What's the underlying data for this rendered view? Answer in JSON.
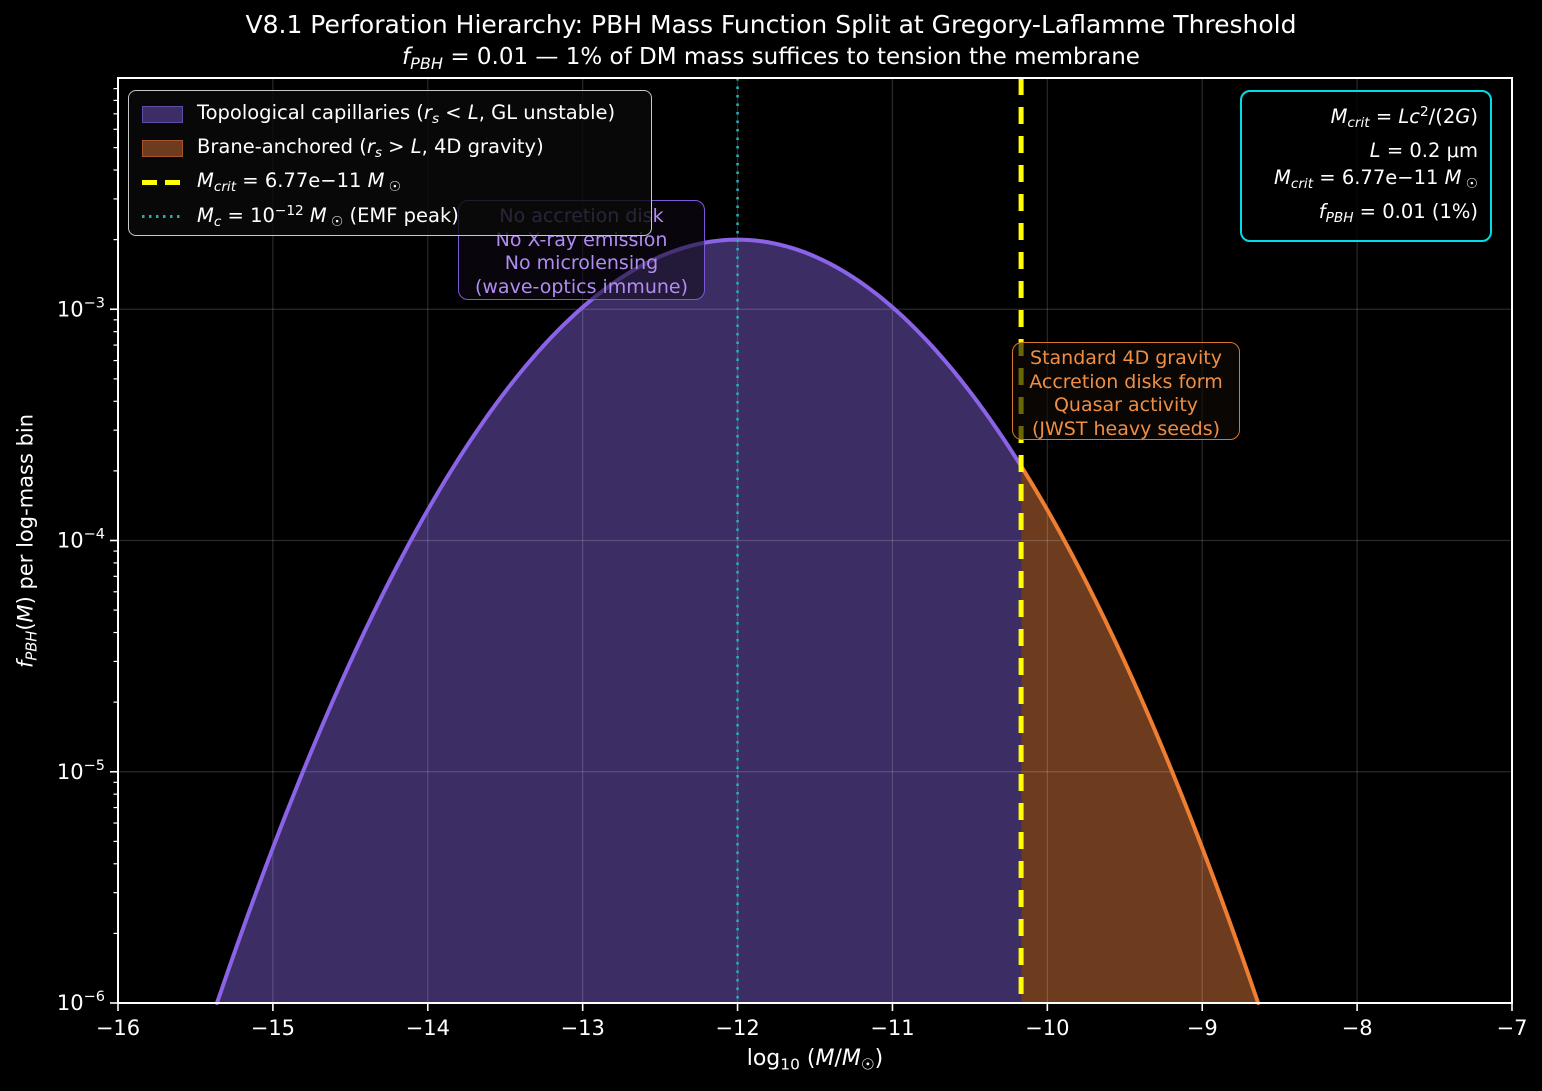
{
  "title": "V8.1 Perforation Hierarchy: PBH Mass Function Split at Gregory-Laflamme Threshold",
  "subtitle_parts": [
    {
      "t": "f",
      "i": 1
    },
    {
      "t": "PBH",
      "sub": 1,
      "i": 1
    },
    {
      "t": " = 0.01 — 1% of DM mass suffices to tension the membrane"
    }
  ],
  "axes": {
    "x_label_parts": [
      {
        "t": "log"
      },
      {
        "t": "10",
        "sub": 1
      },
      {
        "t": " ("
      },
      {
        "t": "M",
        "i": 1
      },
      {
        "t": "/"
      },
      {
        "t": "M",
        "i": 1
      },
      {
        "t": "☉",
        "sub": 1
      },
      {
        "t": ")"
      }
    ],
    "y_label_parts": [
      {
        "t": "f",
        "i": 1
      },
      {
        "t": "PBH",
        "sub": 1,
        "i": 1
      },
      {
        "t": "("
      },
      {
        "t": "M",
        "i": 1
      },
      {
        "t": ") per log-mass bin"
      }
    ]
  },
  "legend": {
    "items": [
      {
        "swatch": "patch-purple",
        "label_parts": [
          {
            "t": "Topological capillaries ("
          },
          {
            "t": "r",
            "i": 1
          },
          {
            "t": "s",
            "sub": 1,
            "i": 1
          },
          {
            "t": " < "
          },
          {
            "t": "L",
            "i": 1
          },
          {
            "t": ", GL unstable)"
          }
        ]
      },
      {
        "swatch": "patch-brown",
        "label_parts": [
          {
            "t": "Brane-anchored ("
          },
          {
            "t": "r",
            "i": 1
          },
          {
            "t": "s",
            "sub": 1,
            "i": 1
          },
          {
            "t": " > "
          },
          {
            "t": "L",
            "i": 1
          },
          {
            "t": ", 4D gravity)"
          }
        ]
      },
      {
        "swatch": "dashed-yellow-line",
        "label_parts": [
          {
            "t": "M",
            "i": 1
          },
          {
            "t": "crit",
            "sub": 1,
            "i": 1
          },
          {
            "t": " = 6.77e−11 "
          },
          {
            "t": "M",
            "i": 1
          },
          {
            "t": " ☉",
            "sub": 1
          }
        ]
      },
      {
        "swatch": "dotted-teal-line",
        "label_parts": [
          {
            "t": "M",
            "i": 1
          },
          {
            "t": "c",
            "sub": 1,
            "i": 1
          },
          {
            "t": " = 10"
          },
          {
            "t": "−12",
            "sup": 1
          },
          {
            "t": " "
          },
          {
            "t": "M",
            "i": 1
          },
          {
            "t": " ☉",
            "sub": 1
          },
          {
            "t": "  (EMF peak)"
          }
        ]
      }
    ]
  },
  "info_box": {
    "border_color": "#00dce8",
    "lines_parts": [
      [
        {
          "t": "M",
          "i": 1
        },
        {
          "t": "crit",
          "sub": 1,
          "i": 1
        },
        {
          "t": " = "
        },
        {
          "t": "Lc",
          "i": 1
        },
        {
          "t": "2",
          "sup": 1
        },
        {
          "t": "/(2"
        },
        {
          "t": "G",
          "i": 1
        },
        {
          "t": ")"
        }
      ],
      [
        {
          "t": "L",
          "i": 1
        },
        {
          "t": " = 0.2 μm"
        }
      ],
      [
        {
          "t": "M",
          "i": 1
        },
        {
          "t": "crit",
          "sub": 1,
          "i": 1
        },
        {
          "t": " = 6.77e−11 "
        },
        {
          "t": "M",
          "i": 1
        },
        {
          "t": " ☉",
          "sub": 1
        }
      ],
      [
        {
          "t": "f",
          "i": 1
        },
        {
          "t": "PBH",
          "sub": 1,
          "i": 1
        },
        {
          "t": " = 0.01 (1%)"
        }
      ]
    ]
  },
  "annotations": {
    "capillary": {
      "text_color": "#b18df2",
      "lines": [
        "No accretion disk",
        "No X-ray emission",
        "No microlensing",
        "(wave-optics immune)"
      ]
    },
    "brane": {
      "text_color": "#ee8f45",
      "lines": [
        "Standard 4D gravity",
        "Accretion disks form",
        "Quasar activity",
        "(JWST heavy seeds)"
      ]
    }
  },
  "chart_data": {
    "type": "area",
    "title": "V8.1 Perforation Hierarchy: PBH Mass Function Split at Gregory-Laflamme Threshold",
    "subtitle": "f_PBH = 0.01 — 1% of DM mass suffices to tension the membrane",
    "xlabel": "log10(M/M_sun)",
    "ylabel": "f_PBH(M) per log-mass bin",
    "xlim": [
      -16,
      -7
    ],
    "ylim_log10": [
      -6,
      -2
    ],
    "grid": true,
    "legend_position": "upper left",
    "x_ticks": [
      {
        "value": -16,
        "label": "−16"
      },
      {
        "value": -15,
        "label": "−15"
      },
      {
        "value": -14,
        "label": "−14"
      },
      {
        "value": -13,
        "label": "−13"
      },
      {
        "value": -12,
        "label": "−12"
      },
      {
        "value": -11,
        "label": "−11"
      },
      {
        "value": -10,
        "label": "−10"
      },
      {
        "value": -9,
        "label": "−9"
      },
      {
        "value": -8,
        "label": "−8"
      },
      {
        "value": -7,
        "label": "−7"
      }
    ],
    "y_ticks": [
      {
        "f": 0.001,
        "base": "10",
        "exp": "−3"
      },
      {
        "f": 0.0001,
        "base": "10",
        "exp": "−4"
      },
      {
        "f": 1e-05,
        "base": "10",
        "exp": "−5"
      },
      {
        "f": 1e-06,
        "base": "10",
        "exp": "−6"
      }
    ],
    "curve": {
      "shape": "gaussian_in_log10M",
      "peak_x": -12,
      "peak_f": 0.002,
      "sigma_dex": 0.862,
      "floor_f": 1e-06
    },
    "samples": {
      "x": [
        -15.5,
        -15.0,
        -14.5,
        -14.0,
        -13.5,
        -13.0,
        -12.5,
        -12.0,
        -11.5,
        -11.0,
        -10.5,
        -10.0,
        -9.5,
        -9.0,
        -8.5
      ],
      "f": [
        5.2e-07,
        4.7e-06,
        3e-05,
        0.000135,
        0.00044,
        0.00102,
        0.00169,
        0.002,
        0.00169,
        0.00102,
        0.00044,
        0.000135,
        3e-05,
        4.7e-06,
        5.2e-07
      ]
    },
    "split_x": -10.1694,
    "regions": [
      {
        "name": "Topological capillaries (r_s < L, GL unstable)",
        "x_range": [
          -15.36,
          -10.1694
        ],
        "fill": "#3c2d65",
        "edge": "#8a63e6"
      },
      {
        "name": "Brane-anchored (r_s > L, 4D gravity)",
        "x_range": [
          -10.1694,
          -8.64
        ],
        "fill": "#6d3c1e",
        "edge": "#ee7e31"
      }
    ],
    "vlines": [
      {
        "x": -10.1694,
        "style": "dashed",
        "color": "#ffff00",
        "width": 5,
        "label": "M_crit = 6.77e-11 M_sun"
      },
      {
        "x": -12,
        "style": "dotted",
        "color": "#2ab0b8",
        "width": 2.5,
        "label": "M_c = 1e-12 M_sun (EMF peak)"
      }
    ]
  }
}
